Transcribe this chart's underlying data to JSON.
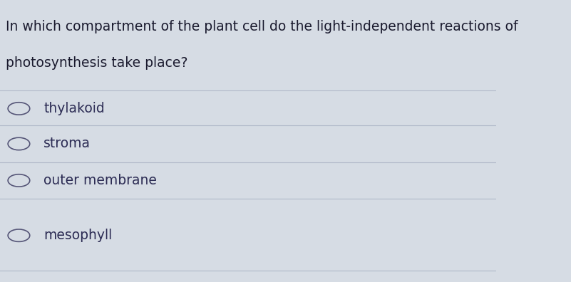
{
  "question_line1": "In which compartment of the plant cell do the light-independent reactions of",
  "question_line2": "photosynthesis take place?",
  "options": [
    "thylakoid",
    "stroma",
    "outer membrane",
    "mesophyll"
  ],
  "background_color": "#d6dce4",
  "text_color": "#1a1a2e",
  "option_text_color": "#2c2c54",
  "line_color": "#b0b8c8",
  "circle_color": "#555577",
  "question_fontsize": 13.5,
  "option_fontsize": 13.5,
  "fig_width": 8.01,
  "fig_height": 3.96
}
